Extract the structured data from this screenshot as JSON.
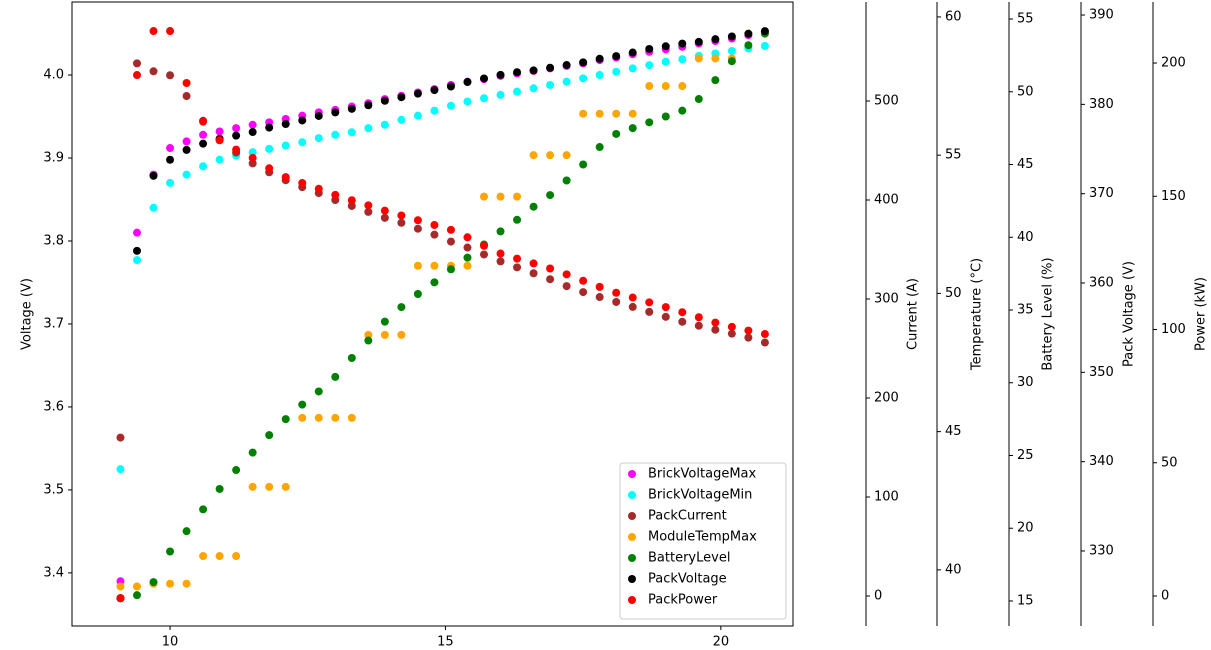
{
  "chart_data": {
    "type": "scatter",
    "x": [
      9.1,
      9.4,
      9.7,
      10.0,
      10.3,
      10.6,
      10.9,
      11.2,
      11.5,
      11.8,
      12.1,
      12.4,
      12.7,
      13.0,
      13.3,
      13.6,
      13.9,
      14.2,
      14.5,
      14.8,
      15.1,
      15.4,
      15.7,
      16.0,
      16.3,
      16.6,
      16.9,
      17.2,
      17.5,
      17.8,
      18.1,
      18.4,
      18.7,
      19.0,
      19.3,
      19.6,
      19.9,
      20.2,
      20.5,
      20.8
    ],
    "xlim": [
      8.22,
      21.31
    ],
    "xticks": [
      10,
      15,
      20
    ],
    "ylabel": "Voltage (V)",
    "ylim": [
      3.336,
      4.088
    ],
    "yticks": [
      3.4,
      3.5,
      3.6,
      3.7,
      3.8,
      3.9,
      {
        "value": 4,
        "label": "4.0"
      }
    ],
    "y2label": "Current (A)",
    "y2lim": [
      -30.3,
      600
    ],
    "y2ticks": [
      0,
      100,
      200,
      300,
      400,
      500
    ],
    "y3label": "Temperature (°C)",
    "y3lim": [
      37.97,
      60.54
    ],
    "y3ticks": [
      40,
      45,
      50,
      55,
      60
    ],
    "y4label": "Battery Level (%)",
    "y4lim": [
      13.28,
      56.17
    ],
    "y4ticks": [
      15,
      20,
      25,
      30,
      35,
      40,
      45,
      50,
      55
    ],
    "y5label": "Pack Voltage (V)",
    "y5lim": [
      321.6,
      391.46
    ],
    "y5ticks": [
      330,
      340,
      350,
      360,
      370,
      380,
      390
    ],
    "y6label": "Power (kW)",
    "y6lim": [
      -11.26,
      222.9
    ],
    "y6ticks": [
      0,
      50,
      100,
      150,
      200
    ],
    "legend": "lower right",
    "series": [
      {
        "name": "BrickVoltageMax",
        "color": "#ff00ff",
        "axis": "y",
        "values": [
          3.39,
          3.81,
          3.88,
          3.912,
          3.92,
          3.928,
          3.932,
          3.936,
          3.94,
          3.943,
          3.947,
          3.951,
          3.955,
          3.958,
          3.962,
          3.966,
          3.971,
          3.975,
          3.979,
          3.983,
          3.988,
          3.992,
          3.995,
          3.999,
          4.002,
          4.005,
          4.008,
          4.011,
          4.014,
          4.018,
          4.021,
          4.025,
          4.028,
          4.031,
          4.034,
          4.038,
          4.041,
          4.044,
          4.048,
          4.052
        ]
      },
      {
        "name": "BrickVoltageMin",
        "color": "#00ffff",
        "axis": "y",
        "values": [
          3.525,
          3.777,
          3.84,
          3.87,
          3.88,
          3.89,
          3.898,
          3.903,
          3.907,
          3.911,
          3.915,
          3.919,
          3.924,
          3.928,
          3.931,
          3.936,
          3.94,
          3.946,
          3.951,
          3.957,
          3.963,
          3.968,
          3.972,
          3.976,
          3.98,
          3.984,
          3.988,
          3.992,
          3.996,
          4.0,
          4.004,
          4.008,
          4.012,
          4.016,
          4.019,
          4.023,
          4.026,
          4.029,
          4.032,
          4.035
        ]
      },
      {
        "name": "PackCurrent",
        "color": "#a52a2a",
        "axis": "y2",
        "values": [
          160,
          538,
          530,
          526,
          505,
          480,
          462,
          448,
          437,
          428,
          420,
          413,
          407,
          400,
          394,
          388,
          382,
          377,
          371,
          365,
          358,
          352,
          345,
          338,
          332,
          326,
          320,
          313,
          307,
          302,
          297,
          292,
          287,
          282,
          277,
          273,
          269,
          265,
          261,
          256
        ]
      },
      {
        "name": "ModuleTempMax",
        "color": "#ffa500",
        "axis": "y3",
        "values": [
          39.4,
          39.4,
          39.5,
          39.5,
          39.5,
          40.5,
          40.5,
          40.5,
          43,
          43,
          43,
          45.5,
          45.5,
          45.5,
          45.5,
          48.5,
          48.5,
          48.5,
          51,
          51,
          51,
          51,
          53.5,
          53.5,
          53.5,
          55,
          55,
          55,
          56.5,
          56.5,
          56.5,
          56.5,
          57.5,
          57.5,
          57.5,
          58.5,
          58.5,
          58.5,
          59.4,
          59.4
        ]
      },
      {
        "name": "BatteryLevel",
        "color": "#008000",
        "axis": "y4",
        "values": [
          15.2,
          15.4,
          16.3,
          18.4,
          19.8,
          21.3,
          22.7,
          24.0,
          25.2,
          26.4,
          27.5,
          28.5,
          29.4,
          30.4,
          31.7,
          32.9,
          34.2,
          35.2,
          36.1,
          36.9,
          37.8,
          38.6,
          39.5,
          40.4,
          41.2,
          42.1,
          42.9,
          43.9,
          45.0,
          46.2,
          47.1,
          47.5,
          47.9,
          48.3,
          48.7,
          49.5,
          50.8,
          52.1,
          53.2,
          54.0
        ]
      },
      {
        "name": "PackVoltage",
        "color": "#000000",
        "axis": "y5",
        "values": [
          324.7,
          363.6,
          372,
          373.8,
          374.9,
          375.6,
          376.1,
          376.5,
          376.9,
          377.4,
          377.8,
          378.2,
          378.7,
          379.1,
          379.5,
          379.9,
          380.4,
          380.8,
          381.2,
          381.6,
          382.0,
          382.5,
          382.9,
          383.3,
          383.6,
          383.8,
          384.1,
          384.4,
          384.7,
          385.1,
          385.4,
          385.8,
          386.2,
          386.5,
          386.8,
          387.0,
          387.3,
          387.6,
          387.9,
          388.2
        ]
      },
      {
        "name": "PackPower",
        "color": "#ff0000",
        "axis": "y6",
        "values": [
          -0.8,
          195.5,
          212,
          212,
          192.5,
          178,
          171,
          167.5,
          164.4,
          160.5,
          157.2,
          155,
          152.8,
          150.5,
          148.5,
          146.6,
          144.6,
          142.8,
          141,
          139.2,
          137.4,
          134.6,
          131.4,
          128.5,
          126.6,
          124.8,
          122.9,
          120.7,
          118.3,
          116,
          113.8,
          112,
          110.2,
          108.4,
          106.5,
          104.6,
          102.6,
          101,
          99.6,
          98.3
        ]
      }
    ]
  }
}
